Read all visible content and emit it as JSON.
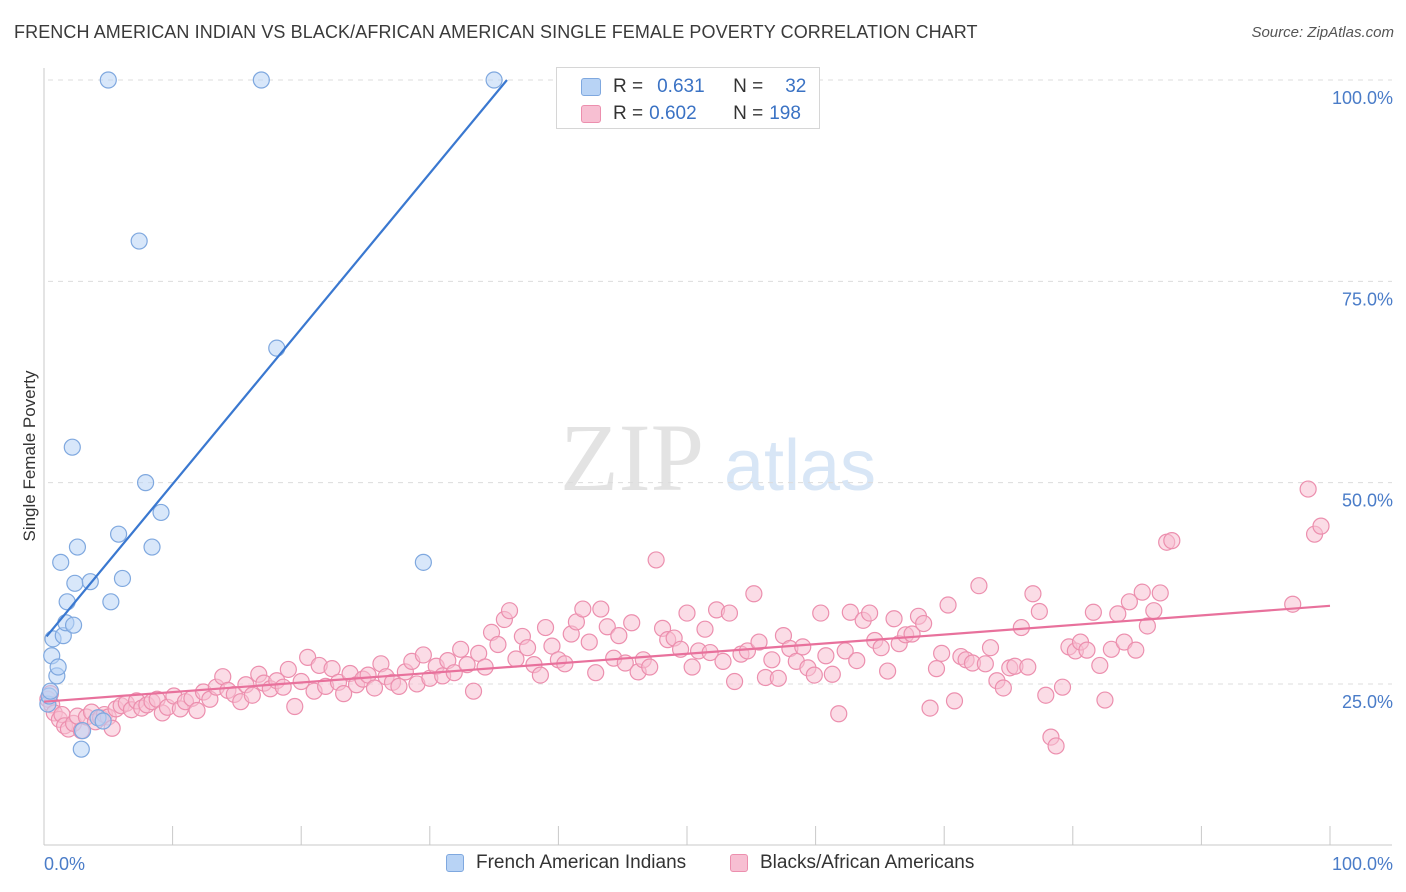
{
  "title": "FRENCH AMERICAN INDIAN VS BLACK/AFRICAN AMERICAN SINGLE FEMALE POVERTY CORRELATION CHART",
  "source": "Source: ZipAtlas.com",
  "watermark": {
    "zip": "ZIP",
    "atlas": "atlas"
  },
  "colors": {
    "blue_fill": "#b8d3f5",
    "blue_stroke": "#7fa8df",
    "blue_line": "#3a78d0",
    "pink_fill": "#f7bfd2",
    "pink_stroke": "#ec8fae",
    "pink_line": "#e8719c",
    "axis_label": "#4a7cc8",
    "grid": "#dcdcdc"
  },
  "stats": {
    "blue": {
      "r_label": "R =",
      "r_value": "0.631",
      "n_label": "N =",
      "n_value": "32"
    },
    "pink": {
      "r_label": "R =",
      "r_value": "0.602",
      "n_label": "N =",
      "n_value": "198"
    }
  },
  "legend": {
    "blue": "French American Indians",
    "pink": "Blacks/African Americans"
  },
  "chart_data": {
    "type": "scatter",
    "title": "FRENCH AMERICAN INDIAN VS BLACK/AFRICAN AMERICAN SINGLE FEMALE POVERTY CORRELATION CHART",
    "xlabel": "",
    "ylabel": "Single Female Poverty",
    "xlim": [
      0,
      100
    ],
    "ylim": [
      5,
      105
    ],
    "x_tick_labels": [
      "0.0%",
      "100.0%"
    ],
    "y_ticks": [
      25,
      50,
      75,
      100
    ],
    "y_tick_labels": [
      "25.0%",
      "50.0%",
      "75.0%",
      "100.0%"
    ],
    "grid": true,
    "legend_position": "bottom",
    "series": [
      {
        "name": "French American Indians",
        "color": "#b8d3f5",
        "trend": {
          "x": [
            0.2,
            36.0
          ],
          "y": [
            30.9,
            100.0
          ]
        },
        "points": [
          [
            0.3,
            22.5
          ],
          [
            0.4,
            23.5
          ],
          [
            0.5,
            24.1
          ],
          [
            0.6,
            28.5
          ],
          [
            0.7,
            30.6
          ],
          [
            1.0,
            26.0
          ],
          [
            1.1,
            27.1
          ],
          [
            1.3,
            40.1
          ],
          [
            1.5,
            31.0
          ],
          [
            1.7,
            32.6
          ],
          [
            1.8,
            35.2
          ],
          [
            2.2,
            54.4
          ],
          [
            2.3,
            32.3
          ],
          [
            2.4,
            37.5
          ],
          [
            2.6,
            42.0
          ],
          [
            2.9,
            16.9
          ],
          [
            3.0,
            19.2
          ],
          [
            3.6,
            37.7
          ],
          [
            4.2,
            20.8
          ],
          [
            4.6,
            20.4
          ],
          [
            5.0,
            100.0
          ],
          [
            5.2,
            35.2
          ],
          [
            5.8,
            43.6
          ],
          [
            6.1,
            38.1
          ],
          [
            7.4,
            80.0
          ],
          [
            7.9,
            50.0
          ],
          [
            8.4,
            42.0
          ],
          [
            9.1,
            46.3
          ],
          [
            16.9,
            100.0
          ],
          [
            18.1,
            66.7
          ],
          [
            29.5,
            40.1
          ],
          [
            35.0,
            100.0
          ]
        ]
      },
      {
        "name": "Blacks/African Americans",
        "color": "#f7bfd2",
        "trend": {
          "x": [
            0,
            100
          ],
          "y": [
            22.8,
            34.7
          ]
        },
        "points": [
          [
            0.3,
            23.1
          ],
          [
            0.5,
            23.8
          ],
          [
            0.6,
            22.4
          ],
          [
            0.8,
            21.4
          ],
          [
            1.2,
            20.6
          ],
          [
            1.4,
            21.2
          ],
          [
            1.6,
            19.8
          ],
          [
            1.9,
            19.4
          ],
          [
            2.3,
            20.1
          ],
          [
            2.6,
            21.0
          ],
          [
            2.9,
            19.2
          ],
          [
            3.3,
            20.9
          ],
          [
            3.7,
            21.5
          ],
          [
            4.0,
            20.3
          ],
          [
            4.4,
            20.8
          ],
          [
            4.7,
            21.2
          ],
          [
            5.0,
            20.9
          ],
          [
            5.3,
            19.5
          ],
          [
            5.6,
            21.9
          ],
          [
            6.0,
            22.3
          ],
          [
            6.4,
            22.6
          ],
          [
            6.8,
            21.8
          ],
          [
            7.2,
            22.9
          ],
          [
            7.6,
            22.0
          ],
          [
            8.0,
            22.4
          ],
          [
            8.4,
            22.8
          ],
          [
            8.8,
            23.1
          ],
          [
            9.2,
            21.4
          ],
          [
            9.6,
            22.1
          ],
          [
            10.1,
            23.5
          ],
          [
            10.6,
            21.9
          ],
          [
            11.0,
            22.8
          ],
          [
            11.5,
            23.2
          ],
          [
            11.9,
            21.7
          ],
          [
            12.4,
            24.0
          ],
          [
            12.9,
            23.1
          ],
          [
            13.4,
            24.6
          ],
          [
            13.9,
            25.9
          ],
          [
            14.3,
            24.2
          ],
          [
            14.8,
            23.7
          ],
          [
            15.3,
            22.8
          ],
          [
            15.7,
            24.9
          ],
          [
            16.2,
            23.6
          ],
          [
            16.7,
            26.2
          ],
          [
            17.1,
            25.1
          ],
          [
            17.6,
            24.4
          ],
          [
            18.1,
            25.4
          ],
          [
            18.6,
            24.6
          ],
          [
            19.0,
            26.8
          ],
          [
            19.5,
            22.2
          ],
          [
            20.0,
            25.3
          ],
          [
            20.5,
            28.3
          ],
          [
            21.0,
            24.1
          ],
          [
            21.4,
            27.3
          ],
          [
            21.9,
            24.7
          ],
          [
            22.4,
            26.9
          ],
          [
            22.9,
            25.2
          ],
          [
            23.3,
            23.8
          ],
          [
            23.8,
            26.3
          ],
          [
            24.3,
            24.9
          ],
          [
            24.8,
            25.6
          ],
          [
            25.2,
            26.1
          ],
          [
            25.7,
            24.5
          ],
          [
            26.2,
            27.5
          ],
          [
            26.6,
            25.9
          ],
          [
            27.1,
            25.2
          ],
          [
            27.6,
            24.7
          ],
          [
            28.1,
            26.5
          ],
          [
            28.6,
            27.8
          ],
          [
            29.0,
            25.0
          ],
          [
            29.5,
            28.6
          ],
          [
            30.0,
            25.7
          ],
          [
            30.5,
            27.2
          ],
          [
            31.0,
            26.0
          ],
          [
            31.4,
            27.9
          ],
          [
            31.9,
            26.4
          ],
          [
            32.4,
            29.3
          ],
          [
            32.9,
            27.4
          ],
          [
            33.4,
            24.1
          ],
          [
            33.8,
            28.8
          ],
          [
            34.3,
            27.1
          ],
          [
            34.8,
            31.4
          ],
          [
            35.3,
            29.9
          ],
          [
            35.8,
            33.0
          ],
          [
            36.2,
            34.1
          ],
          [
            36.7,
            28.1
          ],
          [
            37.2,
            30.9
          ],
          [
            37.6,
            29.5
          ],
          [
            38.1,
            27.4
          ],
          [
            38.6,
            26.1
          ],
          [
            39.0,
            32.0
          ],
          [
            39.5,
            29.7
          ],
          [
            40.0,
            28.0
          ],
          [
            40.5,
            27.5
          ],
          [
            41.0,
            31.2
          ],
          [
            41.4,
            32.7
          ],
          [
            41.9,
            34.3
          ],
          [
            42.4,
            30.2
          ],
          [
            42.9,
            26.4
          ],
          [
            43.3,
            34.3
          ],
          [
            43.8,
            32.1
          ],
          [
            44.3,
            28.2
          ],
          [
            44.7,
            31.0
          ],
          [
            45.2,
            27.6
          ],
          [
            45.7,
            32.6
          ],
          [
            46.2,
            26.5
          ],
          [
            46.6,
            28.0
          ],
          [
            47.1,
            27.1
          ],
          [
            47.6,
            40.4
          ],
          [
            48.1,
            31.9
          ],
          [
            48.5,
            30.5
          ],
          [
            49.0,
            30.7
          ],
          [
            49.5,
            29.3
          ],
          [
            50.0,
            33.8
          ],
          [
            50.4,
            27.1
          ],
          [
            50.9,
            29.1
          ],
          [
            51.4,
            31.8
          ],
          [
            51.8,
            28.9
          ],
          [
            52.3,
            34.2
          ],
          [
            52.8,
            27.8
          ],
          [
            53.3,
            33.8
          ],
          [
            53.7,
            25.3
          ],
          [
            54.2,
            28.7
          ],
          [
            54.7,
            29.1
          ],
          [
            55.2,
            36.2
          ],
          [
            55.6,
            30.2
          ],
          [
            56.1,
            25.8
          ],
          [
            56.6,
            28.0
          ],
          [
            57.1,
            25.7
          ],
          [
            57.5,
            31.0
          ],
          [
            58.0,
            29.4
          ],
          [
            58.5,
            27.8
          ],
          [
            59.0,
            29.6
          ],
          [
            59.4,
            27.0
          ],
          [
            59.9,
            26.1
          ],
          [
            60.4,
            33.8
          ],
          [
            60.8,
            28.5
          ],
          [
            61.3,
            26.2
          ],
          [
            61.8,
            21.3
          ],
          [
            62.3,
            29.1
          ],
          [
            62.7,
            33.9
          ],
          [
            63.2,
            27.9
          ],
          [
            63.7,
            32.9
          ],
          [
            64.2,
            33.8
          ],
          [
            64.6,
            30.4
          ],
          [
            65.1,
            29.5
          ],
          [
            65.6,
            26.6
          ],
          [
            66.1,
            33.1
          ],
          [
            66.5,
            30.0
          ],
          [
            67.0,
            31.1
          ],
          [
            67.5,
            31.2
          ],
          [
            68.0,
            33.4
          ],
          [
            68.4,
            32.5
          ],
          [
            68.9,
            22.0
          ],
          [
            69.4,
            26.9
          ],
          [
            69.8,
            28.8
          ],
          [
            70.3,
            34.8
          ],
          [
            70.8,
            22.9
          ],
          [
            71.3,
            28.4
          ],
          [
            71.7,
            28.0
          ],
          [
            72.2,
            27.6
          ],
          [
            72.7,
            37.2
          ],
          [
            73.2,
            27.5
          ],
          [
            73.6,
            29.5
          ],
          [
            74.1,
            25.4
          ],
          [
            74.6,
            24.5
          ],
          [
            75.1,
            27.0
          ],
          [
            75.5,
            27.2
          ],
          [
            76.0,
            32.0
          ],
          [
            76.5,
            27.1
          ],
          [
            76.9,
            36.2
          ],
          [
            77.4,
            34.0
          ],
          [
            77.9,
            23.6
          ],
          [
            78.3,
            18.4
          ],
          [
            78.7,
            17.3
          ],
          [
            79.2,
            24.6
          ],
          [
            79.7,
            29.6
          ],
          [
            80.2,
            29.1
          ],
          [
            80.6,
            30.2
          ],
          [
            81.1,
            29.2
          ],
          [
            81.6,
            33.9
          ],
          [
            82.1,
            27.3
          ],
          [
            82.5,
            23.0
          ],
          [
            83.0,
            29.3
          ],
          [
            83.5,
            33.7
          ],
          [
            84.0,
            30.2
          ],
          [
            84.4,
            35.2
          ],
          [
            84.9,
            29.2
          ],
          [
            85.4,
            36.4
          ],
          [
            85.8,
            32.2
          ],
          [
            86.3,
            34.1
          ],
          [
            86.8,
            36.3
          ],
          [
            87.3,
            42.6
          ],
          [
            87.7,
            42.8
          ],
          [
            98.3,
            49.2
          ],
          [
            98.8,
            43.6
          ],
          [
            99.3,
            44.6
          ],
          [
            97.1,
            34.9
          ]
        ]
      }
    ]
  }
}
